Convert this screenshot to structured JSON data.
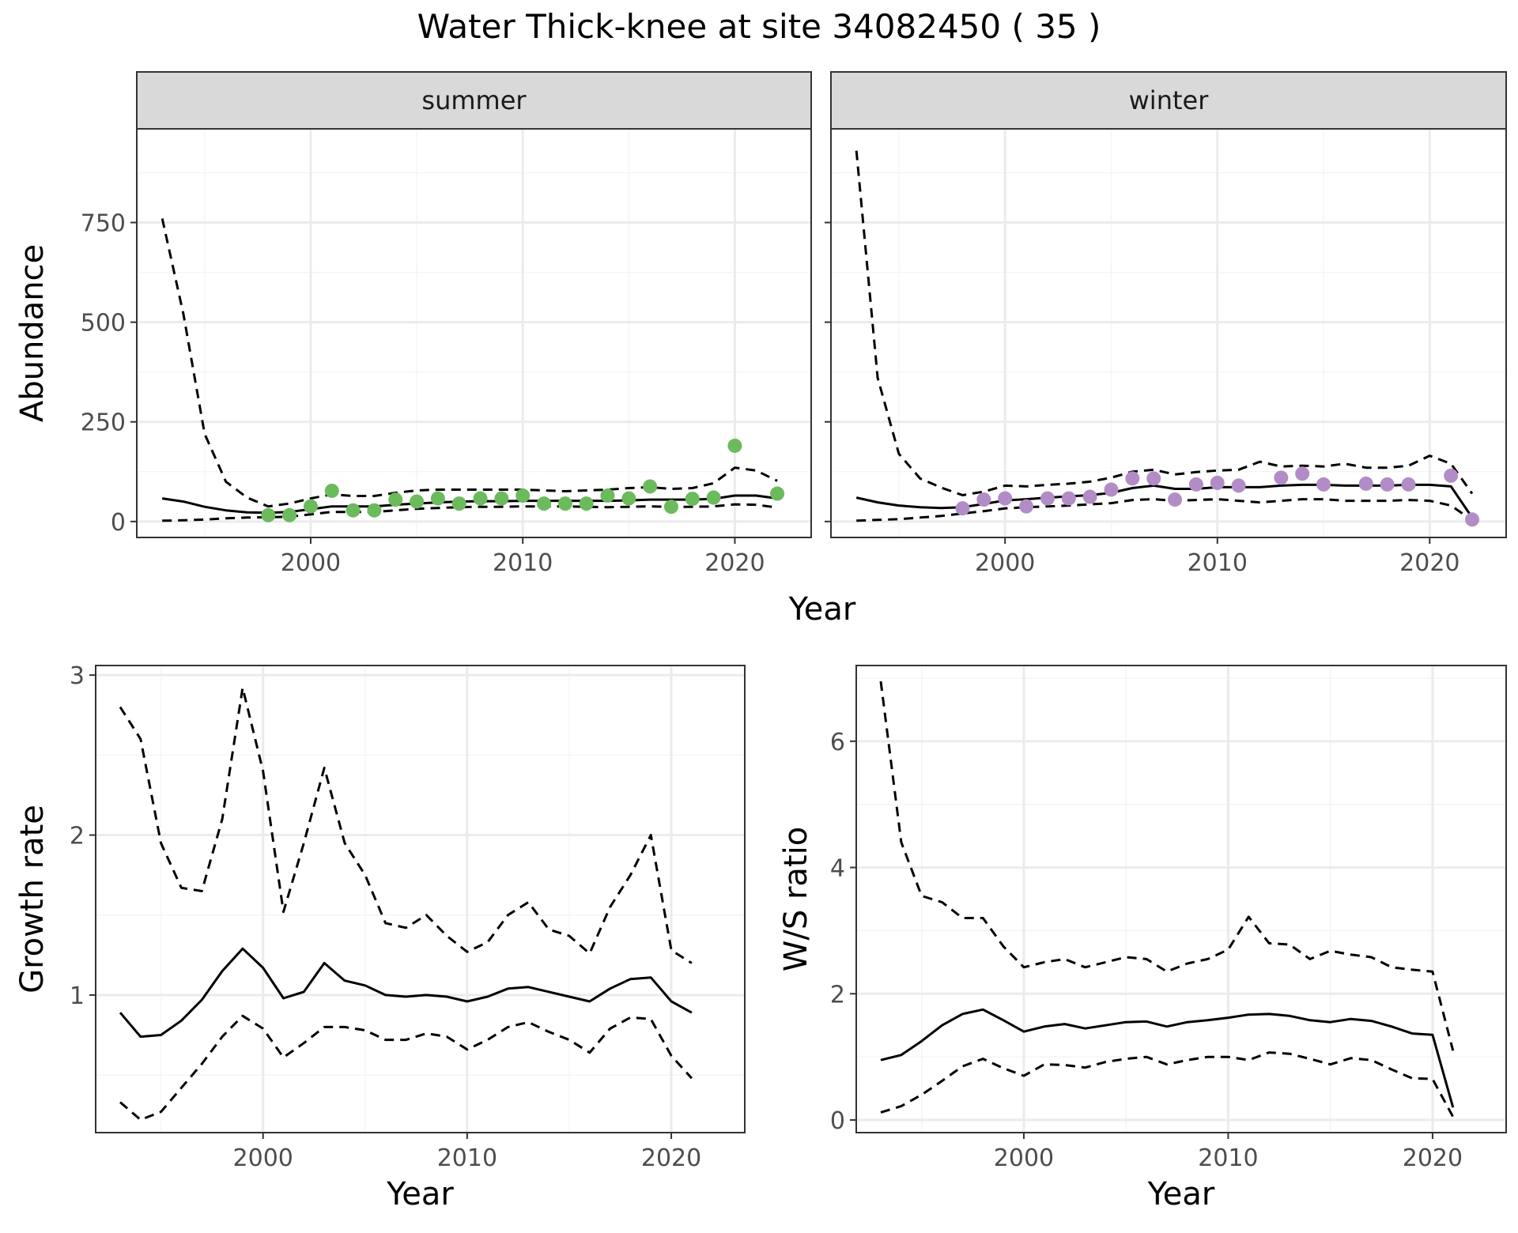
{
  "title": "Water Thick-knee at site 34082450 ( 35 )",
  "colors": {
    "summer_points": "#6BBB5C",
    "winter_points": "#B28CC6",
    "line": "#000000",
    "strip": "#D9D9D9",
    "grid_major": "#EBEBEB",
    "grid_minor": "#F5F5F5",
    "panel_border": "#333333",
    "tick_text": "#4D4D4D"
  },
  "chart_data": [
    {
      "id": "summer",
      "type": "line",
      "strip_label": "summer",
      "ylabel": "Abundance",
      "xlabel": "Year",
      "xlim": [
        1991.8,
        2023.6
      ],
      "ylim": [
        -40,
        985
      ],
      "xticks": [
        2000,
        2010,
        2020
      ],
      "yticks": [
        0,
        250,
        500,
        750
      ],
      "x": [
        1993,
        1994,
        1995,
        1996,
        1997,
        1998,
        1999,
        2000,
        2001,
        2002,
        2003,
        2004,
        2005,
        2006,
        2007,
        2008,
        2009,
        2010,
        2011,
        2012,
        2013,
        2014,
        2015,
        2016,
        2017,
        2018,
        2019,
        2020,
        2021,
        2022
      ],
      "series": [
        {
          "role": "estimate",
          "style": "solid",
          "values": [
            58,
            50,
            37,
            28,
            23,
            22,
            24,
            31,
            38,
            38,
            38,
            42,
            45,
            48,
            50,
            51,
            51,
            52,
            52,
            52,
            52,
            52,
            53,
            55,
            55,
            55,
            57,
            65,
            65,
            58
          ]
        },
        {
          "role": "upper",
          "style": "dashed",
          "values": [
            760,
            520,
            220,
            100,
            60,
            38,
            45,
            58,
            68,
            64,
            64,
            72,
            78,
            80,
            80,
            80,
            80,
            80,
            78,
            76,
            78,
            80,
            84,
            86,
            82,
            84,
            96,
            135,
            128,
            102
          ]
        },
        {
          "role": "lower",
          "style": "dashed",
          "values": [
            2,
            3,
            5,
            8,
            10,
            11,
            12,
            18,
            24,
            24,
            24,
            28,
            32,
            34,
            36,
            37,
            37,
            38,
            38,
            38,
            37,
            36,
            37,
            38,
            37,
            37,
            38,
            43,
            42,
            35
          ]
        }
      ],
      "points": {
        "x": [
          1998,
          1999,
          2000,
          2001,
          2002,
          2003,
          2004,
          2005,
          2006,
          2007,
          2008,
          2009,
          2010,
          2011,
          2012,
          2013,
          2014,
          2015,
          2016,
          2017,
          2018,
          2019,
          2020,
          2022
        ],
        "y": [
          16,
          16,
          38,
          77,
          28,
          28,
          55,
          50,
          58,
          45,
          58,
          58,
          65,
          45,
          45,
          45,
          65,
          58,
          88,
          37,
          57,
          60,
          190,
          70
        ]
      }
    },
    {
      "id": "winter",
      "type": "line",
      "strip_label": "winter",
      "ylabel": "",
      "xlabel": "Year",
      "xlim": [
        1991.8,
        2023.6
      ],
      "ylim": [
        -40,
        985
      ],
      "xticks": [
        2000,
        2010,
        2020
      ],
      "yticks": [
        0,
        250,
        500,
        750
      ],
      "x": [
        1993,
        1994,
        1995,
        1996,
        1997,
        1998,
        1999,
        2000,
        2001,
        2002,
        2003,
        2004,
        2005,
        2006,
        2007,
        2008,
        2009,
        2010,
        2011,
        2012,
        2013,
        2014,
        2015,
        2016,
        2017,
        2018,
        2019,
        2020,
        2021,
        2022
      ],
      "series": [
        {
          "role": "estimate",
          "style": "solid",
          "values": [
            60,
            48,
            40,
            36,
            34,
            36,
            44,
            53,
            56,
            60,
            63,
            66,
            72,
            84,
            90,
            82,
            82,
            86,
            86,
            86,
            90,
            92,
            92,
            90,
            90,
            90,
            92,
            92,
            88,
            10
          ]
        },
        {
          "role": "upper",
          "style": "dashed",
          "values": [
            930,
            360,
            170,
            108,
            85,
            66,
            75,
            90,
            88,
            92,
            95,
            100,
            110,
            125,
            130,
            118,
            124,
            128,
            130,
            150,
            138,
            140,
            138,
            145,
            135,
            135,
            140,
            165,
            145,
            70
          ]
        },
        {
          "role": "lower",
          "style": "dashed",
          "values": [
            2,
            4,
            6,
            10,
            14,
            20,
            26,
            33,
            36,
            38,
            40,
            43,
            46,
            54,
            56,
            52,
            54,
            56,
            52,
            48,
            52,
            56,
            56,
            52,
            52,
            52,
            54,
            52,
            40,
            3
          ]
        }
      ],
      "points": {
        "x": [
          1998,
          1999,
          2000,
          2001,
          2002,
          2003,
          2004,
          2005,
          2006,
          2007,
          2008,
          2009,
          2010,
          2011,
          2013,
          2014,
          2015,
          2017,
          2018,
          2019,
          2021,
          2022
        ],
        "y": [
          33,
          55,
          58,
          38,
          58,
          58,
          62,
          80,
          108,
          108,
          55,
          93,
          97,
          90,
          110,
          120,
          93,
          95,
          93,
          93,
          115,
          5
        ]
      }
    },
    {
      "id": "growth",
      "type": "line",
      "xlabel": "Year",
      "ylabel": "Growth rate",
      "xlim": [
        1991.8,
        2023.6
      ],
      "ylim": [
        0.14,
        3.06
      ],
      "xticks": [
        2000,
        2010,
        2020
      ],
      "yticks": [
        1,
        2,
        3
      ],
      "x": [
        1993,
        1994,
        1995,
        1996,
        1997,
        1998,
        1999,
        2000,
        2001,
        2002,
        2003,
        2004,
        2005,
        2006,
        2007,
        2008,
        2009,
        2010,
        2011,
        2012,
        2013,
        2014,
        2015,
        2016,
        2017,
        2018,
        2019,
        2020,
        2021
      ],
      "series": [
        {
          "role": "estimate",
          "style": "solid",
          "values": [
            0.89,
            0.74,
            0.75,
            0.84,
            0.97,
            1.15,
            1.29,
            1.17,
            0.98,
            1.02,
            1.2,
            1.09,
            1.06,
            1.0,
            0.99,
            1.0,
            0.99,
            0.96,
            0.99,
            1.04,
            1.05,
            1.02,
            0.99,
            0.96,
            1.04,
            1.1,
            1.11,
            0.96,
            0.89
          ]
        },
        {
          "role": "upper",
          "style": "dashed",
          "values": [
            2.8,
            2.6,
            1.95,
            1.67,
            1.65,
            2.1,
            2.92,
            2.4,
            1.52,
            1.95,
            2.42,
            1.95,
            1.75,
            1.45,
            1.42,
            1.5,
            1.37,
            1.27,
            1.33,
            1.5,
            1.58,
            1.41,
            1.37,
            1.26,
            1.55,
            1.75,
            2.0,
            1.28,
            1.2
          ]
        },
        {
          "role": "lower",
          "style": "dashed",
          "values": [
            0.33,
            0.22,
            0.27,
            0.42,
            0.57,
            0.74,
            0.87,
            0.79,
            0.61,
            0.7,
            0.8,
            0.8,
            0.78,
            0.72,
            0.72,
            0.76,
            0.74,
            0.66,
            0.72,
            0.8,
            0.83,
            0.77,
            0.72,
            0.64,
            0.79,
            0.86,
            0.85,
            0.62,
            0.48
          ]
        }
      ]
    },
    {
      "id": "ratio",
      "type": "line",
      "xlabel": "Year",
      "ylabel": "W/S ratio",
      "xlim": [
        1991.8,
        2023.6
      ],
      "ylim": [
        -0.2,
        7.2
      ],
      "xticks": [
        2000,
        2010,
        2020
      ],
      "yticks": [
        0,
        2,
        4,
        6
      ],
      "x": [
        1993,
        1994,
        1995,
        1996,
        1997,
        1998,
        1999,
        2000,
        2001,
        2002,
        2003,
        2004,
        2005,
        2006,
        2007,
        2008,
        2009,
        2010,
        2011,
        2012,
        2013,
        2014,
        2015,
        2016,
        2017,
        2018,
        2019,
        2020,
        2021
      ],
      "series": [
        {
          "role": "estimate",
          "style": "solid",
          "values": [
            0.95,
            1.03,
            1.25,
            1.5,
            1.68,
            1.75,
            1.58,
            1.4,
            1.48,
            1.52,
            1.45,
            1.5,
            1.55,
            1.56,
            1.48,
            1.55,
            1.58,
            1.62,
            1.67,
            1.68,
            1.65,
            1.58,
            1.55,
            1.6,
            1.57,
            1.48,
            1.37,
            1.35,
            0.2
          ]
        },
        {
          "role": "upper",
          "style": "dashed",
          "values": [
            6.95,
            4.4,
            3.55,
            3.45,
            3.2,
            3.2,
            2.75,
            2.42,
            2.5,
            2.55,
            2.42,
            2.5,
            2.58,
            2.55,
            2.35,
            2.48,
            2.55,
            2.7,
            3.22,
            2.8,
            2.78,
            2.55,
            2.68,
            2.62,
            2.58,
            2.42,
            2.38,
            2.35,
            1.1
          ]
        },
        {
          "role": "lower",
          "style": "dashed",
          "values": [
            0.12,
            0.22,
            0.4,
            0.62,
            0.85,
            0.97,
            0.82,
            0.7,
            0.88,
            0.87,
            0.83,
            0.92,
            0.97,
            1.0,
            0.88,
            0.95,
            1.0,
            1.0,
            0.95,
            1.07,
            1.05,
            0.97,
            0.88,
            0.98,
            0.95,
            0.8,
            0.66,
            0.65,
            0.05
          ]
        }
      ]
    }
  ]
}
